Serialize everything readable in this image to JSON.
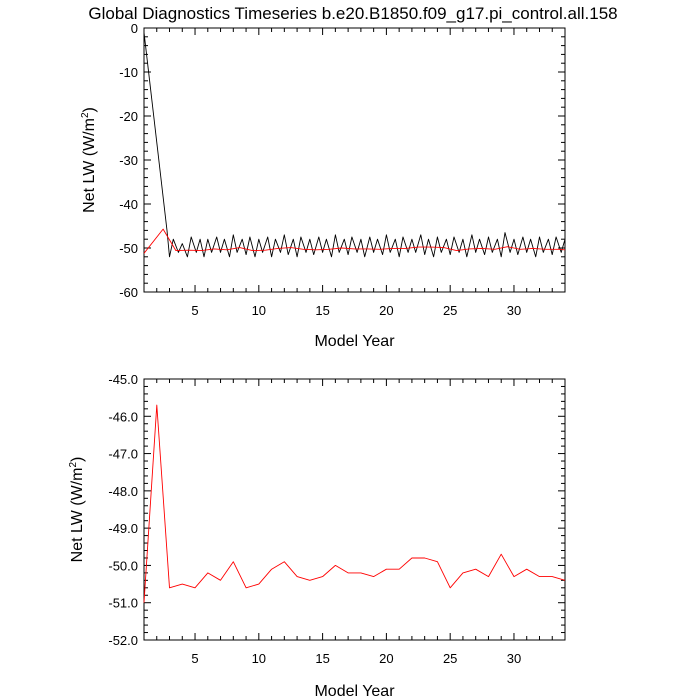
{
  "title": "Global Diagnostics Timeseries b.e20.B1850.f09_g17.pi_control.all.158",
  "chart_data": [
    {
      "type": "line",
      "xlabel": "Model Year",
      "ylabel_main": "Net LW (W/m",
      "ylabel_sup": "2",
      "ylabel_end": ")",
      "xlim": [
        1,
        34
      ],
      "ylim": [
        -60,
        0
      ],
      "xticks": [
        5,
        10,
        15,
        20,
        25,
        30
      ],
      "xtick_labels": [
        "5",
        "10",
        "15",
        "20",
        "25",
        "30"
      ],
      "yticks": [
        0,
        -10,
        -20,
        -30,
        -40,
        -50,
        -60
      ],
      "ytick_labels": [
        "0",
        "-10",
        "-20",
        "-30",
        "-40",
        "-50",
        "-60"
      ],
      "series": [
        {
          "color": "#000000",
          "x": [
            1.0,
            2.8,
            3.0,
            3.3,
            3.7,
            4.0,
            4.4,
            4.7,
            5.1,
            5.4,
            5.7,
            6.0,
            6.3,
            6.7,
            7.0,
            7.3,
            7.7,
            8.0,
            8.3,
            8.7,
            9.0,
            9.3,
            9.7,
            10.0,
            10.3,
            10.7,
            11.0,
            11.3,
            11.7,
            12.0,
            12.3,
            12.7,
            13.0,
            13.3,
            13.7,
            14.0,
            14.3,
            14.7,
            15.0,
            15.3,
            15.7,
            16.0,
            16.3,
            16.7,
            17.0,
            17.3,
            17.7,
            18.0,
            18.3,
            18.7,
            19.0,
            19.3,
            19.7,
            20.0,
            20.3,
            20.7,
            21.0,
            21.3,
            21.7,
            22.0,
            22.3,
            22.7,
            23.0,
            23.3,
            23.7,
            24.0,
            24.3,
            24.7,
            25.0,
            25.3,
            25.7,
            26.0,
            26.3,
            26.7,
            27.0,
            27.3,
            27.7,
            28.0,
            28.3,
            28.7,
            29.0,
            29.3,
            29.7,
            30.0,
            30.3,
            30.7,
            31.0,
            31.3,
            31.7,
            32.0,
            32.3,
            32.7,
            33.0,
            33.3,
            33.7,
            34.0
          ],
          "y": [
            -1,
            -46,
            -52,
            -48,
            -51,
            -49,
            -52,
            -47.5,
            -51,
            -48,
            -52,
            -48,
            -51,
            -47.5,
            -51,
            -48,
            -52,
            -47,
            -51,
            -48,
            -51.5,
            -47.5,
            -52,
            -48,
            -51,
            -47.5,
            -52,
            -48,
            -51,
            -47,
            -51.5,
            -48,
            -52,
            -47.5,
            -51,
            -48,
            -51.5,
            -47.5,
            -51,
            -48,
            -52,
            -47,
            -51,
            -48,
            -51.5,
            -47.5,
            -51,
            -48,
            -52,
            -47.5,
            -51,
            -48,
            -51.5,
            -47,
            -51,
            -48,
            -52,
            -47.5,
            -51,
            -48,
            -51,
            -47,
            -51.5,
            -48,
            -52,
            -47.5,
            -51,
            -48,
            -51.5,
            -47.5,
            -51,
            -48,
            -52,
            -47,
            -51,
            -48,
            -51.5,
            -47.5,
            -51,
            -48,
            -52,
            -46.5,
            -51,
            -48,
            -51.5,
            -47.5,
            -51,
            -48,
            -52,
            -47.5,
            -51,
            -48,
            -51.5,
            -47.5,
            -51,
            -48
          ]
        },
        {
          "color": "#ff0000",
          "x": [
            1,
            2.5,
            3.5,
            4.5,
            5.5,
            6.5,
            7.5,
            8.5,
            9.5,
            10.5,
            11.5,
            12.5,
            13.5,
            14.5,
            15.5,
            16.5,
            17.5,
            18.5,
            19.5,
            20.5,
            21.5,
            22.5,
            23.5,
            24.5,
            25.5,
            26.5,
            27.5,
            28.5,
            29.5,
            30.5,
            31.5,
            32.5,
            33.5,
            34
          ],
          "y": [
            -51.2,
            -45.7,
            -50.6,
            -50.5,
            -50.6,
            -50.2,
            -50.4,
            -49.9,
            -50.6,
            -50.5,
            -50.1,
            -49.9,
            -50.3,
            -50.4,
            -50.3,
            -50.0,
            -50.2,
            -50.2,
            -50.3,
            -50.1,
            -50.1,
            -49.8,
            -49.8,
            -49.9,
            -50.6,
            -50.2,
            -50.1,
            -50.3,
            -49.7,
            -50.3,
            -50.1,
            -50.3,
            -50.3,
            -50.4
          ]
        }
      ]
    },
    {
      "type": "line",
      "xlabel": "Model Year",
      "ylabel_main": "Net LW (W/m",
      "ylabel_sup": "2",
      "ylabel_end": ")",
      "xlim": [
        1,
        34
      ],
      "ylim": [
        -52,
        -45
      ],
      "xticks": [
        5,
        10,
        15,
        20,
        25,
        30
      ],
      "xtick_labels": [
        "5",
        "10",
        "15",
        "20",
        "25",
        "30"
      ],
      "yticks": [
        -45,
        -46,
        -47,
        -48,
        -49,
        -50,
        -51,
        -52
      ],
      "ytick_labels": [
        "-45.0",
        "-46.0",
        "-47.0",
        "-48.0",
        "-49.0",
        "-50.0",
        "-51.0",
        "-52.0"
      ],
      "series": [
        {
          "color": "#ff0000",
          "x": [
            1,
            2,
            3,
            4,
            5,
            6,
            7,
            8,
            9,
            10,
            11,
            12,
            13,
            14,
            15,
            16,
            17,
            18,
            19,
            20,
            21,
            22,
            23,
            24,
            25,
            26,
            27,
            28,
            29,
            30,
            31,
            32,
            33,
            34
          ],
          "y": [
            -51.0,
            -45.7,
            -50.6,
            -50.5,
            -50.6,
            -50.2,
            -50.4,
            -49.9,
            -50.6,
            -50.5,
            -50.1,
            -49.9,
            -50.3,
            -50.4,
            -50.3,
            -50.0,
            -50.2,
            -50.2,
            -50.3,
            -50.1,
            -50.1,
            -49.8,
            -49.8,
            -49.9,
            -50.6,
            -50.2,
            -50.1,
            -50.3,
            -49.7,
            -50.3,
            -50.1,
            -50.3,
            -50.3,
            -50.4
          ]
        }
      ]
    }
  ]
}
